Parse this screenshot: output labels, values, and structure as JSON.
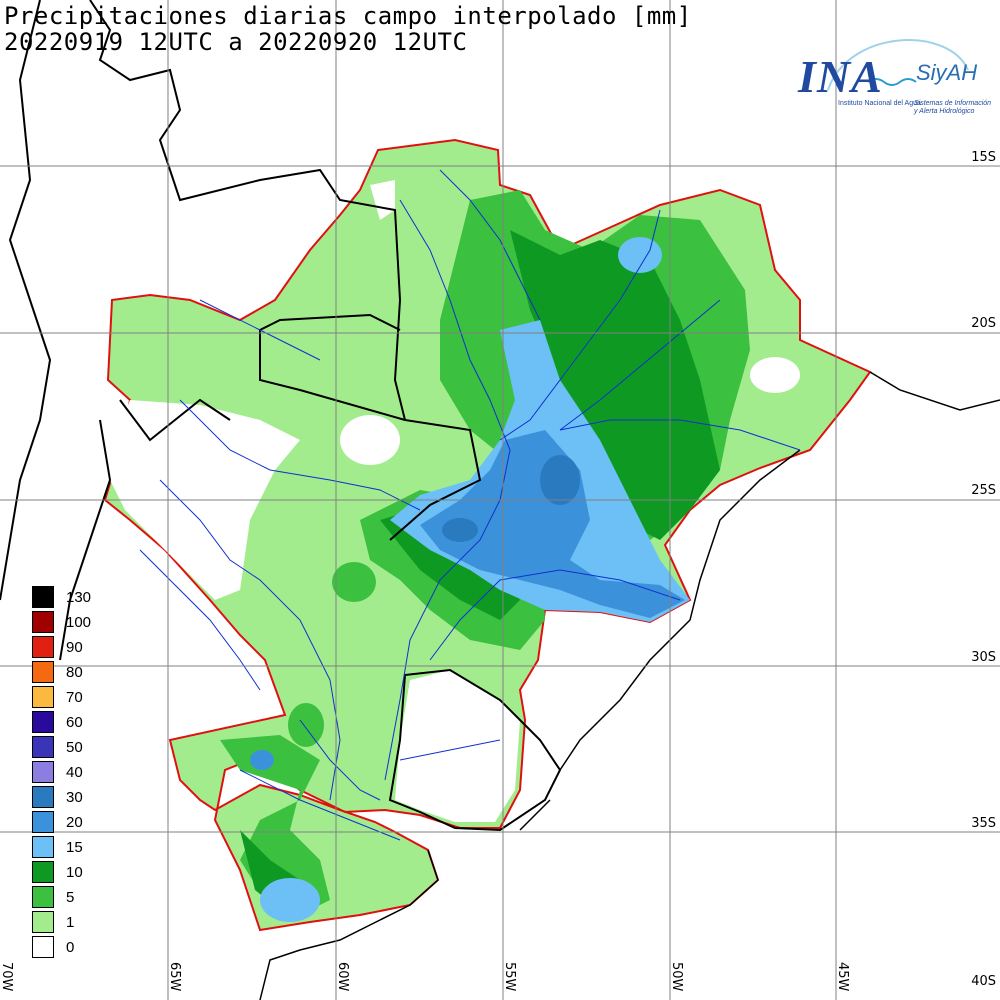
{
  "title": {
    "line1": "Precipitaciones diarias campo interpolado [mm]",
    "line2": "20220919 12UTC a 20220920 12UTC"
  },
  "latitude_labels": [
    "15S",
    "20S",
    "25S",
    "30S",
    "35S",
    "40S"
  ],
  "longitude_labels": [
    "70W",
    "65W",
    "60W",
    "55W",
    "50W",
    "45W"
  ],
  "legend": [
    {
      "label": "130",
      "color": "#000000"
    },
    {
      "label": "100",
      "color": "#a00000"
    },
    {
      "label": "90",
      "color": "#e02010"
    },
    {
      "label": "80",
      "color": "#f56a10"
    },
    {
      "label": "70",
      "color": "#fbb940"
    },
    {
      "label": "60",
      "color": "#2a0a9c"
    },
    {
      "label": "50",
      "color": "#3a34b8"
    },
    {
      "label": "40",
      "color": "#8c7ee0"
    },
    {
      "label": "30",
      "color": "#2a7abf"
    },
    {
      "label": "20",
      "color": "#3b92db"
    },
    {
      "label": "15",
      "color": "#6cc0f5"
    },
    {
      "label": "10",
      "color": "#0e9a22"
    },
    {
      "label": "5",
      "color": "#3cc040"
    },
    {
      "label": "1",
      "color": "#a3ec8e"
    },
    {
      "label": "0",
      "color": "#ffffff"
    }
  ],
  "logo": {
    "main": "INA",
    "sub": "SiyAH",
    "line1": "Instituto Nacional del Agua",
    "line2": "Sistemas de Información y Alerta Hidrológico"
  },
  "colors": {
    "basin_outline": "#e01010",
    "rivers": "#1030d0",
    "borders": "#000000",
    "grid": "#808080"
  }
}
